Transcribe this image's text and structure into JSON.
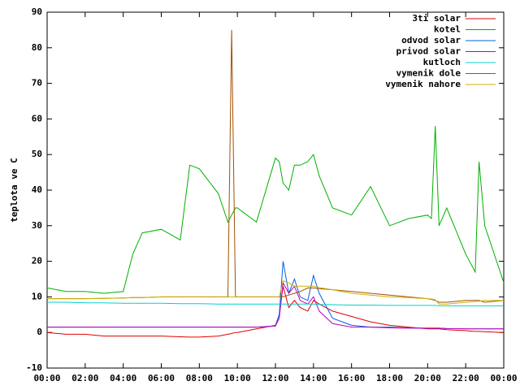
{
  "chart_data": {
    "type": "line",
    "ylabel": "teplota ve C",
    "x": [
      0,
      1,
      2,
      3,
      4,
      4.5,
      5,
      6,
      7,
      7.5,
      8,
      9,
      9.5,
      9.7,
      9.9,
      10,
      11,
      12,
      12.2,
      12.4,
      12.7,
      13,
      13.3,
      13.7,
      14,
      14.3,
      15,
      16,
      17,
      18,
      19,
      20,
      20.2,
      20.4,
      20.6,
      21,
      22,
      22.5,
      22.7,
      23,
      24
    ],
    "xlim": [
      0,
      24
    ],
    "xticks": [
      {
        "value": 0,
        "label": "00:00"
      },
      {
        "value": 2,
        "label": "02:00"
      },
      {
        "value": 4,
        "label": "04:00"
      },
      {
        "value": 6,
        "label": "06:00"
      },
      {
        "value": 8,
        "label": "08:00"
      },
      {
        "value": 10,
        "label": "10:00"
      },
      {
        "value": 12,
        "label": "12:00"
      },
      {
        "value": 14,
        "label": "14:00"
      },
      {
        "value": 16,
        "label": "16:00"
      },
      {
        "value": 18,
        "label": "18:00"
      },
      {
        "value": 20,
        "label": "20:00"
      },
      {
        "value": 22,
        "label": "22:00"
      },
      {
        "value": 24,
        "label": "00:00"
      }
    ],
    "ylim": [
      -10,
      90
    ],
    "yticks": [
      -10,
      0,
      10,
      20,
      30,
      40,
      50,
      60,
      70,
      80,
      90
    ],
    "legend": "top-right",
    "series": [
      {
        "name": "3ti solar",
        "color": "#e00000",
        "values": [
          0,
          -0.5,
          -0.5,
          -1,
          -1,
          -1,
          -1,
          -1,
          -1.2,
          -1.3,
          -1.3,
          -1,
          -0.5,
          -0.3,
          0,
          0,
          1,
          2,
          5,
          13,
          7,
          9,
          7,
          6,
          9,
          8,
          6,
          4.5,
          3,
          2,
          1.5,
          1,
          1,
          1,
          1,
          0.8,
          0.5,
          0.3,
          0.3,
          0.2,
          0
        ]
      },
      {
        "name": "kotel",
        "color": "#00b000",
        "values": [
          12.5,
          11.5,
          11.5,
          11,
          11.5,
          22,
          28,
          29,
          26,
          47,
          46,
          39,
          31,
          33,
          35,
          35,
          31,
          49,
          48,
          42,
          40,
          47,
          47,
          48,
          50,
          44,
          35,
          33,
          41,
          30,
          32,
          33,
          32,
          58,
          30,
          35,
          22,
          17,
          48,
          30,
          14
        ]
      },
      {
        "name": "odvod solar",
        "color": "#0060e0",
        "values": [
          1.5,
          1.5,
          1.5,
          1.5,
          1.5,
          1.5,
          1.5,
          1.5,
          1.5,
          1.5,
          1.5,
          1.5,
          1.5,
          1.5,
          1.5,
          1.5,
          1.5,
          1.8,
          5,
          20,
          11,
          15,
          10,
          9,
          16,
          11,
          4,
          2,
          1.5,
          1.5,
          1.3,
          1.2,
          1.2,
          1.2,
          1.2,
          1.1,
          1,
          1,
          1,
          1,
          1
        ]
      },
      {
        "name": "privod solar",
        "color": "#c000c0",
        "values": [
          1.5,
          1.5,
          1.5,
          1.5,
          1.5,
          1.5,
          1.5,
          1.5,
          1.5,
          1.5,
          1.5,
          1.5,
          1.5,
          1.5,
          1.5,
          1.5,
          1.5,
          1.8,
          4,
          14,
          11,
          13,
          9,
          8,
          10,
          6,
          2.5,
          1.5,
          1.5,
          1.3,
          1.2,
          1.2,
          1.2,
          1.2,
          1.2,
          1.1,
          1,
          1,
          1,
          1,
          1
        ]
      },
      {
        "name": "kutloch",
        "color": "#00d0d0",
        "values": [
          8.5,
          8.5,
          8.3,
          8.3,
          8.2,
          8.2,
          8.2,
          8.2,
          8.1,
          8.1,
          8.1,
          8,
          8,
          8,
          8,
          8,
          8,
          8,
          8,
          8,
          8,
          8,
          8,
          8,
          8,
          7.9,
          7.8,
          7.7,
          7.7,
          7.6,
          7.6,
          7.6,
          7.6,
          7.6,
          7.5,
          7.5,
          7.5,
          7.5,
          7.5,
          7.5,
          7.5
        ]
      },
      {
        "name": "vymenik dole",
        "color": "#a05000",
        "values": [
          9.5,
          9.5,
          9.5,
          9.6,
          9.7,
          9.8,
          9.8,
          10,
          10,
          10,
          10,
          10,
          10,
          85,
          10,
          10,
          10,
          10,
          10,
          10,
          10.5,
          11,
          11.5,
          12.5,
          12.5,
          12.3,
          12,
          11.5,
          11,
          10.5,
          10,
          9.5,
          9.3,
          9,
          8.5,
          8.5,
          9,
          9,
          9,
          8.5,
          9
        ]
      },
      {
        "name": "vymenik nahore",
        "color": "#d0b000",
        "values": [
          9.5,
          9.5,
          9.5,
          9.6,
          9.7,
          9.8,
          9.8,
          10,
          10,
          10,
          10,
          10,
          10,
          10,
          10,
          10,
          10,
          10,
          10,
          14.5,
          14,
          13,
          13,
          13,
          13,
          12.6,
          12,
          11,
          10.5,
          10,
          9.8,
          9.5,
          9.4,
          9.2,
          8,
          8,
          8.5,
          8.7,
          8.8,
          9,
          9
        ]
      }
    ]
  }
}
